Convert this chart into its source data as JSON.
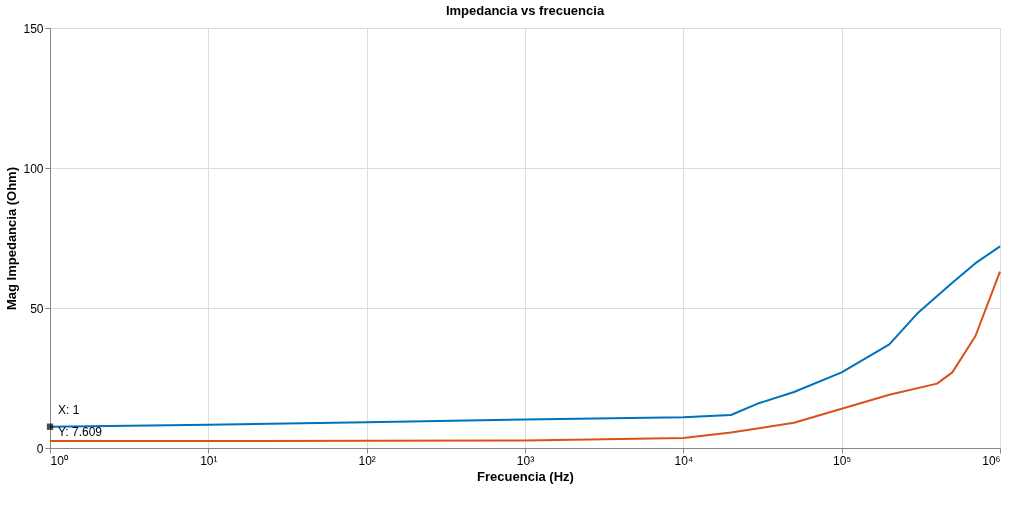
{
  "chart_data": {
    "type": "line",
    "title": "Impedancia vs frecuencia",
    "xlabel": "Frecuencia (Hz)",
    "ylabel": "Mag Impedancia (Ohm)",
    "log": "x",
    "xlim": [
      1,
      1000000
    ],
    "xticks": [
      {
        "value": 1,
        "label": "10⁰"
      },
      {
        "value": 10,
        "label": "10¹"
      },
      {
        "value": 100,
        "label": "10²"
      },
      {
        "value": 1000,
        "label": "10³"
      },
      {
        "value": 10000,
        "label": "10⁴"
      },
      {
        "value": 100000,
        "label": "10⁵"
      },
      {
        "value": 1000000,
        "label": "10⁶"
      }
    ],
    "ylim": [
      0,
      150
    ],
    "yticks": [
      0,
      50,
      100,
      150
    ],
    "grid": true,
    "legend": false,
    "series": [
      {
        "color": "#0072bd",
        "x": [
          1,
          10,
          100,
          1000,
          10000,
          20000,
          30000,
          50000,
          100000,
          200000,
          300000,
          500000,
          700000,
          1000000
        ],
        "values": [
          7.6,
          8.3,
          9.2,
          10.2,
          11,
          11.8,
          16,
          20,
          27,
          37,
          48,
          59,
          66,
          72
        ]
      },
      {
        "color": "#d95319",
        "x": [
          1,
          10,
          100,
          1000,
          10000,
          20000,
          50000,
          100000,
          200000,
          400000,
          500000,
          700000,
          1000000
        ],
        "values": [
          2.5,
          2.5,
          2.6,
          2.7,
          3.6,
          5.5,
          9,
          14,
          19,
          23,
          27,
          40,
          63
        ]
      }
    ],
    "annotations": [
      {
        "text": "X: 1\nY: 7.609",
        "x": 1,
        "y": 7.609
      }
    ]
  }
}
